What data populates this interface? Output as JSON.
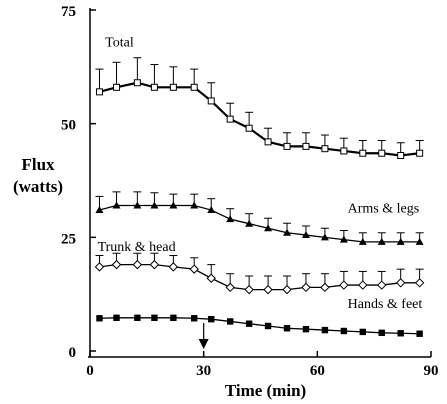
{
  "chart_data": {
    "type": "line",
    "title": "",
    "xlabel": "Time (min)",
    "ylabel_line1": "Flux",
    "ylabel_line2": "(watts)",
    "xlim": [
      0,
      90
    ],
    "ylim": [
      0,
      75
    ],
    "x_ticks": [
      0,
      30,
      60,
      90
    ],
    "x_tick_labels": [
      "0",
      "30",
      "60",
      "90"
    ],
    "y_ticks": [
      0,
      25,
      50,
      75
    ],
    "y_tick_labels": [
      "0",
      "25",
      "50",
      "75"
    ],
    "grid": false,
    "legend": "none (series labelled directly on plot)",
    "annotation": {
      "type": "arrow",
      "direction": "down",
      "x": 30
    },
    "x": [
      2.5,
      7,
      12.5,
      17,
      22,
      27.5,
      32,
      37,
      42,
      47,
      52,
      57,
      62,
      67,
      72,
      77,
      82,
      87
    ],
    "series": [
      {
        "name": "Total",
        "marker": "open-square",
        "label_x": 4,
        "label_y": 67,
        "values": [
          57,
          58,
          59,
          58,
          58,
          58,
          55,
          51,
          49,
          46,
          45,
          45,
          44.5,
          44,
          43.5,
          43.5,
          43,
          43.5
        ],
        "errors": [
          5,
          5.5,
          5.5,
          5,
          4.5,
          4,
          4,
          3.5,
          3.5,
          3,
          3,
          3,
          3,
          2.8,
          2.8,
          2.8,
          2.8,
          2.8
        ]
      },
      {
        "name": "Arms & legs",
        "marker": "filled-triangle",
        "label_x": 68,
        "label_y": 30.5,
        "values": [
          31,
          32,
          32,
          32,
          32,
          32,
          31,
          29,
          28,
          27,
          26,
          25.5,
          25,
          24.5,
          24,
          24,
          24,
          24
        ],
        "errors": [
          3,
          3,
          3,
          2.8,
          2.5,
          2.5,
          2.5,
          2.3,
          2.2,
          2.2,
          2.1,
          2,
          2,
          2,
          2,
          2,
          2,
          2
        ]
      },
      {
        "name": "Trunk & head",
        "marker": "open-diamond",
        "label_x": 2,
        "label_y": 22,
        "values": [
          18.5,
          19,
          19,
          19,
          18.5,
          18,
          16,
          14,
          13.5,
          13.5,
          13.5,
          14,
          14,
          14.5,
          14.5,
          14.5,
          15,
          15
        ],
        "errors": [
          2.5,
          2.5,
          2.5,
          2.5,
          2.5,
          2.5,
          3,
          3,
          3,
          3,
          3,
          3,
          3,
          3,
          3,
          3,
          3,
          3
        ]
      },
      {
        "name": "Hands & feet",
        "marker": "filled-square",
        "label_x": 68,
        "label_y": 9.5,
        "values": [
          7.2,
          7.3,
          7.3,
          7.3,
          7.3,
          7.2,
          7,
          6.5,
          6,
          5.5,
          5,
          4.8,
          4.6,
          4.4,
          4.2,
          4,
          3.9,
          3.8
        ],
        "errors": [
          0,
          0,
          0,
          0,
          0,
          0,
          0,
          0,
          0,
          0,
          0,
          0,
          0,
          0,
          0,
          0,
          0,
          0
        ]
      }
    ]
  }
}
